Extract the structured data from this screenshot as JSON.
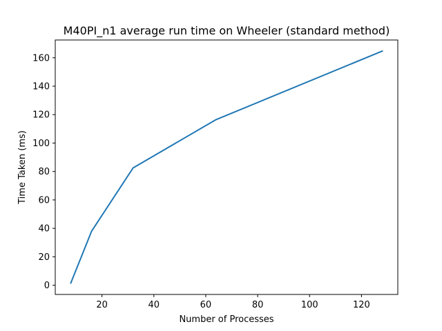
{
  "chart_data": {
    "type": "line",
    "title": "M40PI_n1 average run time on Wheeler (standard method)",
    "xlabel": "Number of Processes",
    "ylabel": "Time Taken (ms)",
    "xlim": [
      2,
      134
    ],
    "ylim": [
      -6.5,
      172.5
    ],
    "xticks": [
      20,
      40,
      60,
      80,
      100,
      120
    ],
    "yticks": [
      0,
      20,
      40,
      60,
      80,
      100,
      120,
      140,
      160
    ],
    "grid": false,
    "legend": "none",
    "series": [
      {
        "color": "#1f77b4",
        "x": [
          8,
          16,
          32,
          64,
          128
        ],
        "y": [
          1.5,
          38,
          82.5,
          116.5,
          164.7
        ]
      }
    ]
  }
}
